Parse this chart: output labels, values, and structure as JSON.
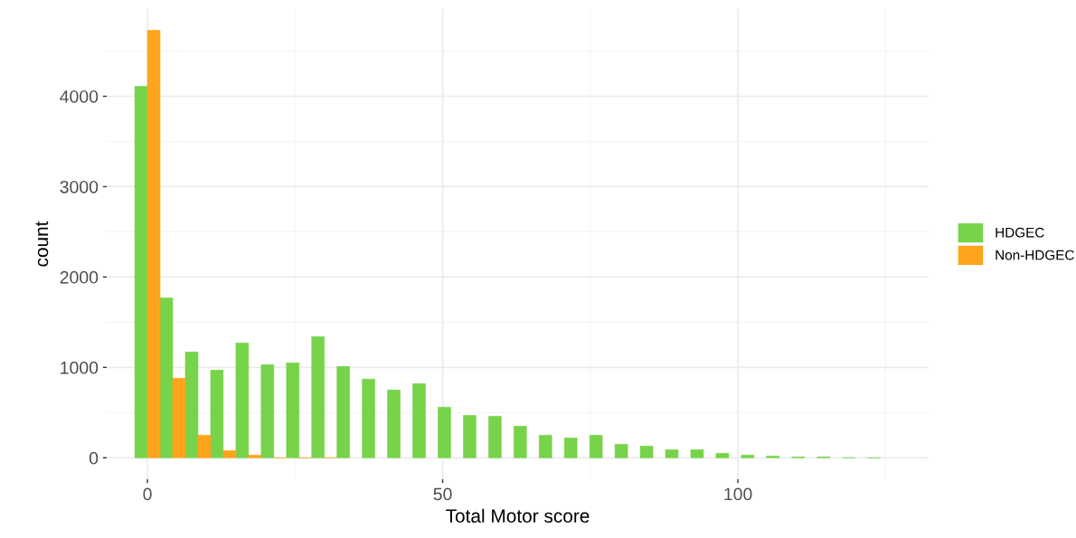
{
  "chart_data": {
    "type": "histogram",
    "xlabel": "Total Motor score",
    "ylabel": "count",
    "bins": [
      -2.14,
      2.14,
      6.42,
      10.7,
      14.98,
      19.26,
      23.54,
      27.82,
      32.1,
      36.38,
      40.66,
      44.94,
      49.22,
      53.5,
      57.78,
      62.06,
      66.34,
      70.62,
      74.9,
      79.18,
      83.46,
      87.74,
      92.02,
      96.3,
      100.58,
      104.86,
      109.14,
      113.42,
      117.7,
      121.98,
      126.26
    ],
    "series": [
      {
        "name": "HDGEC",
        "color": "#77d34a",
        "values": [
          4110,
          1770,
          1170,
          970,
          1270,
          1030,
          1050,
          1340,
          1010,
          870,
          750,
          820,
          560,
          470,
          460,
          350,
          250,
          220,
          250,
          150,
          130,
          90,
          90,
          50,
          30,
          20,
          10,
          10,
          0,
          0
        ]
      },
      {
        "name": "Non-HDGEC",
        "color": "#ffa41c",
        "values": [
          4730,
          880,
          250,
          80,
          30,
          0,
          0,
          0,
          null,
          null,
          null,
          null,
          null,
          null,
          null,
          null,
          null,
          null,
          null,
          null,
          null,
          null,
          null,
          null,
          null,
          null,
          null,
          null,
          null,
          null
        ]
      }
    ],
    "xlim": [
      -6.9,
      132.3
    ],
    "xticks": [
      0,
      50,
      100
    ],
    "ylim": [
      -237,
      4965
    ],
    "yticks": [
      0,
      1000,
      2000,
      3000,
      4000
    ],
    "grid": true,
    "legend": "right"
  }
}
